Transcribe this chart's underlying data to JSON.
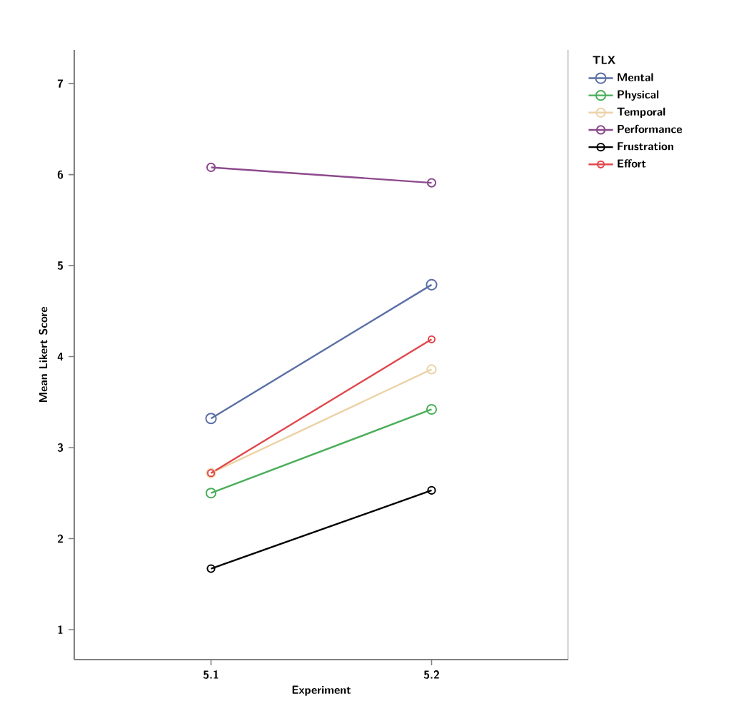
{
  "chart_data": {
    "type": "line",
    "xlabel": "Experiment",
    "ylabel": "Mean Likert Score",
    "legend_title": "TLX",
    "categories": [
      "5.1",
      "5.2"
    ],
    "series": [
      {
        "name": "Mental",
        "color": "#5b6fa6",
        "values": [
          3.32,
          4.79
        ]
      },
      {
        "name": "Physical",
        "color": "#4cae5a",
        "values": [
          2.5,
          3.42
        ]
      },
      {
        "name": "Temporal",
        "color": "#ecd2a6",
        "values": [
          2.72,
          3.86
        ]
      },
      {
        "name": "Performance",
        "color": "#8c4a8c",
        "values": [
          6.08,
          5.91
        ]
      },
      {
        "name": "Frustration",
        "color": "#000000",
        "values": [
          1.67,
          2.53
        ]
      },
      {
        "name": "Effort",
        "color": "#e0474c",
        "values": [
          2.72,
          4.19
        ]
      }
    ],
    "ylim": [
      0.67,
      7.37
    ],
    "yticks": [
      1,
      2,
      3,
      4,
      5,
      6,
      7
    ],
    "legend": "right",
    "marker": "circle",
    "line_style": "solid",
    "grid": false
  }
}
